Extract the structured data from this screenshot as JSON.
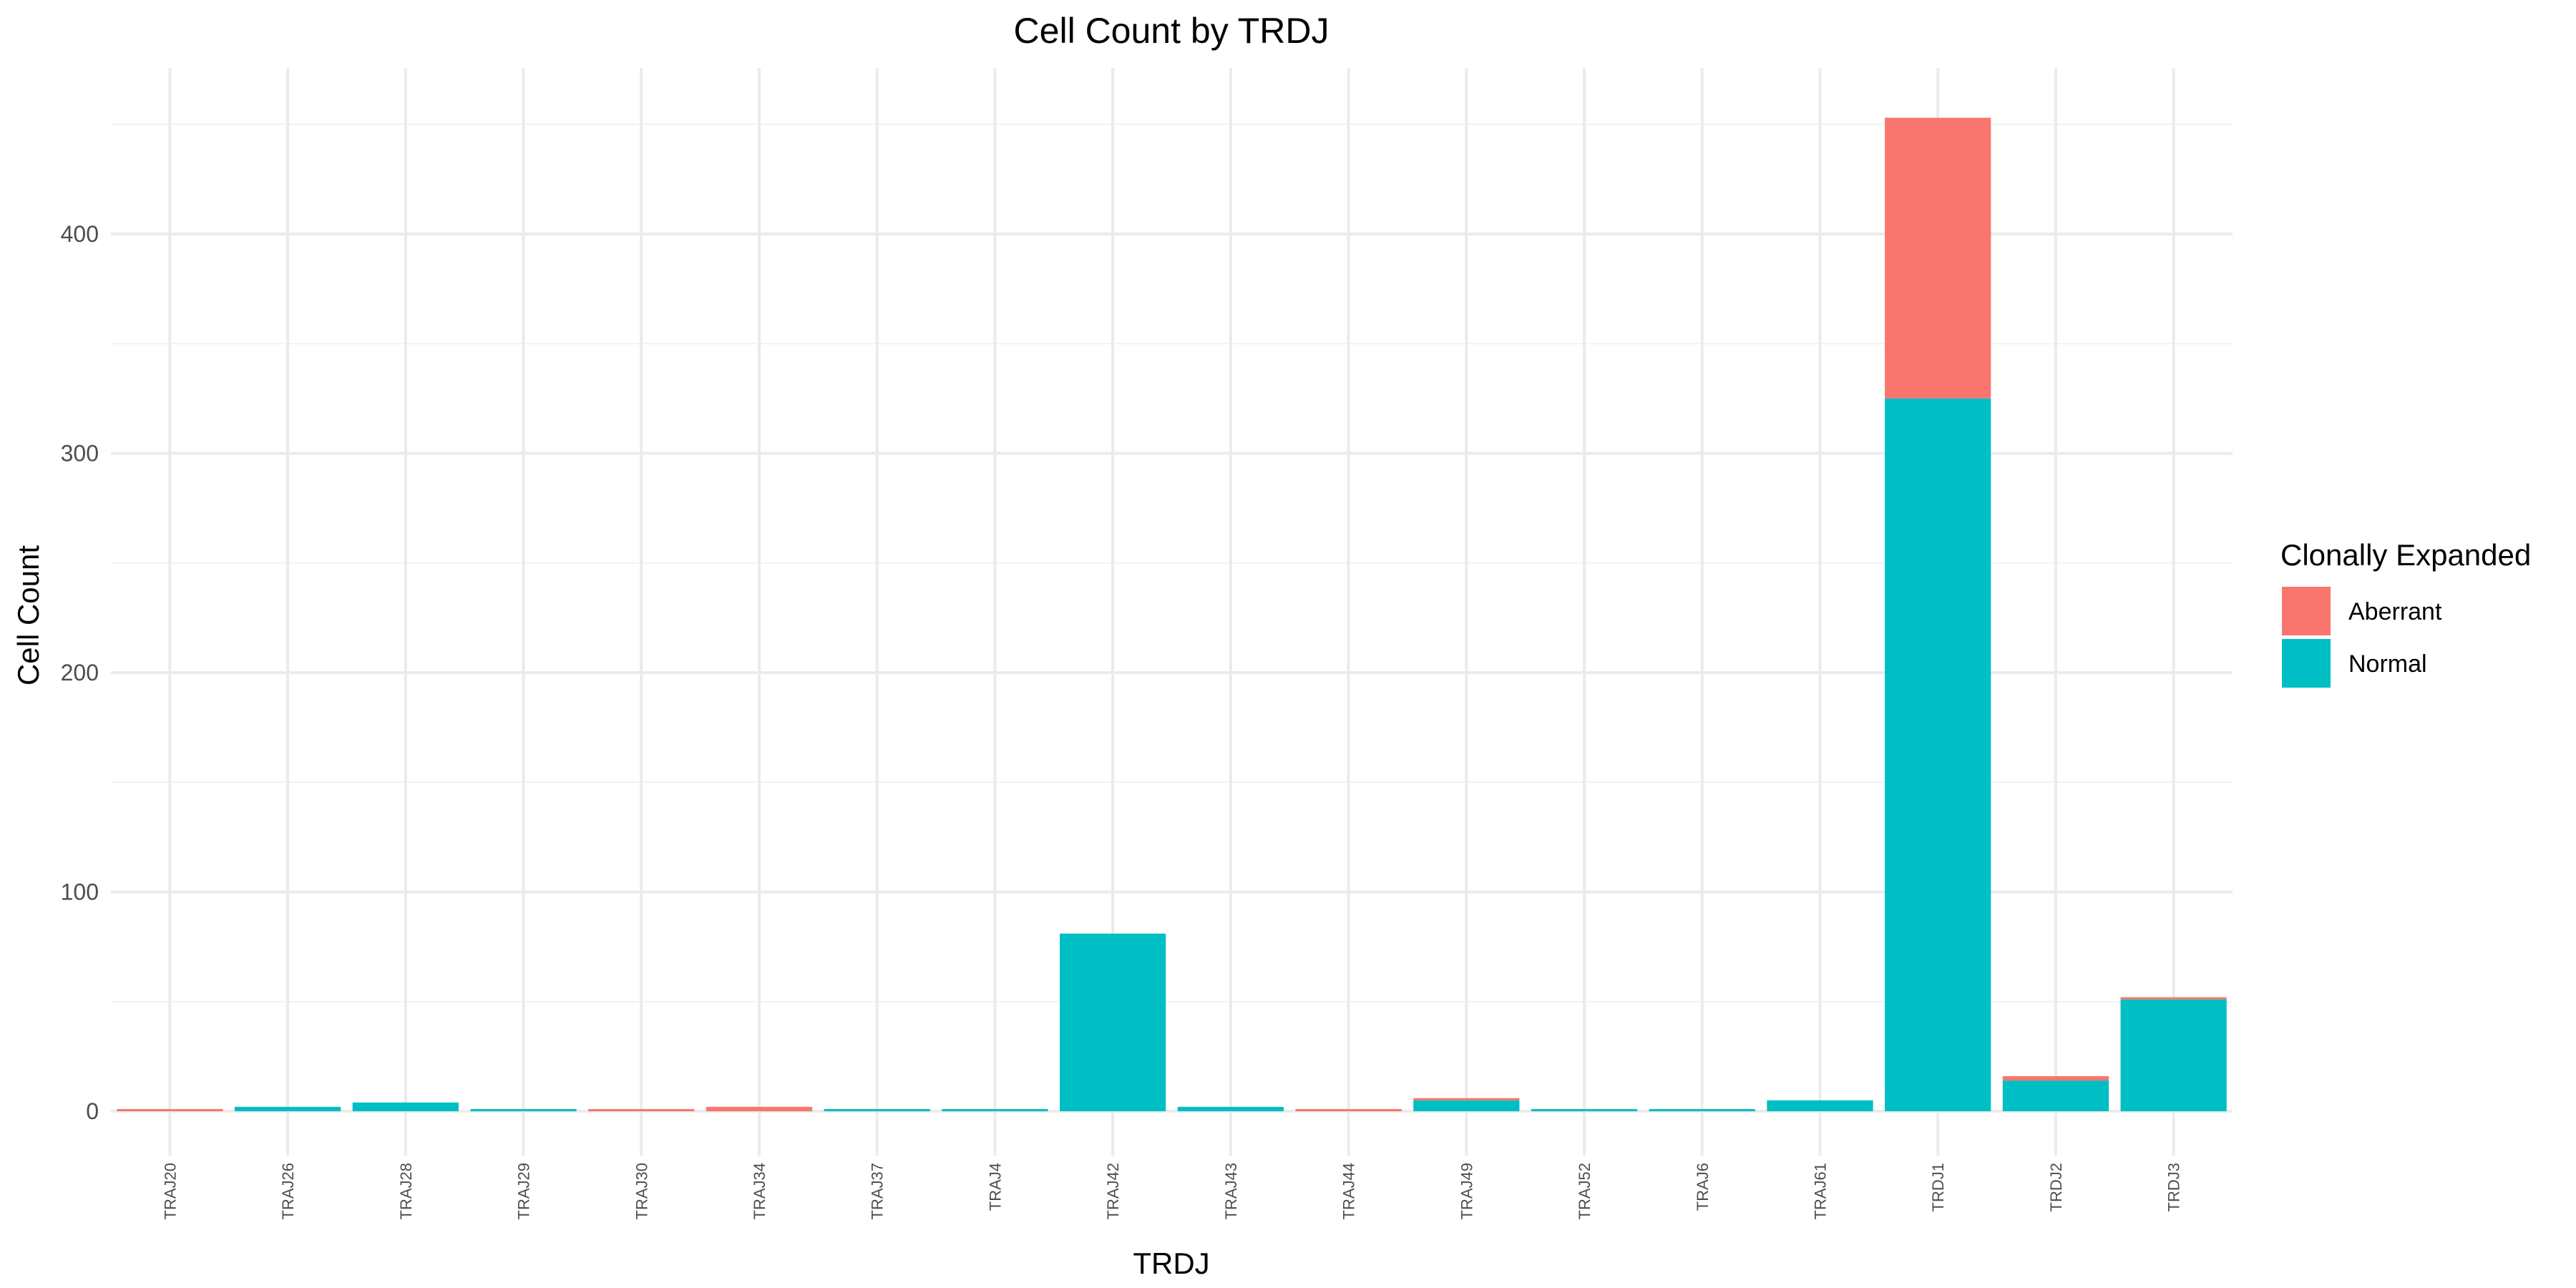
{
  "chart_data": {
    "type": "bar",
    "stacked": true,
    "title": "Cell Count by TRDJ",
    "xlabel": "TRDJ",
    "ylabel": "Cell Count",
    "ylim": [
      -25,
      470
    ],
    "yticks": [
      0,
      100,
      200,
      300,
      400
    ],
    "grid": true,
    "legend": {
      "title": "Clonally Expanded",
      "position": "right"
    },
    "categories": [
      "TRAJ20",
      "TRAJ26",
      "TRAJ28",
      "TRAJ29",
      "TRAJ30",
      "TRAJ34",
      "TRAJ37",
      "TRAJ4",
      "TRAJ42",
      "TRAJ43",
      "TRAJ44",
      "TRAJ49",
      "TRAJ52",
      "TRAJ6",
      "TRAJ61",
      "TRDJ1",
      "TRDJ2",
      "TRDJ3"
    ],
    "series": [
      {
        "name": "Normal",
        "color": "#00BFC4",
        "values": [
          0,
          2,
          4,
          1,
          0,
          0,
          1,
          1,
          81,
          2,
          0,
          5,
          1,
          1,
          5,
          325,
          14,
          51
        ]
      },
      {
        "name": "Aberrant",
        "color": "#F8766D",
        "values": [
          1,
          0,
          0,
          0,
          1,
          2,
          0,
          0,
          0,
          0,
          1,
          1,
          0,
          0,
          0,
          128,
          2,
          1
        ]
      }
    ]
  }
}
